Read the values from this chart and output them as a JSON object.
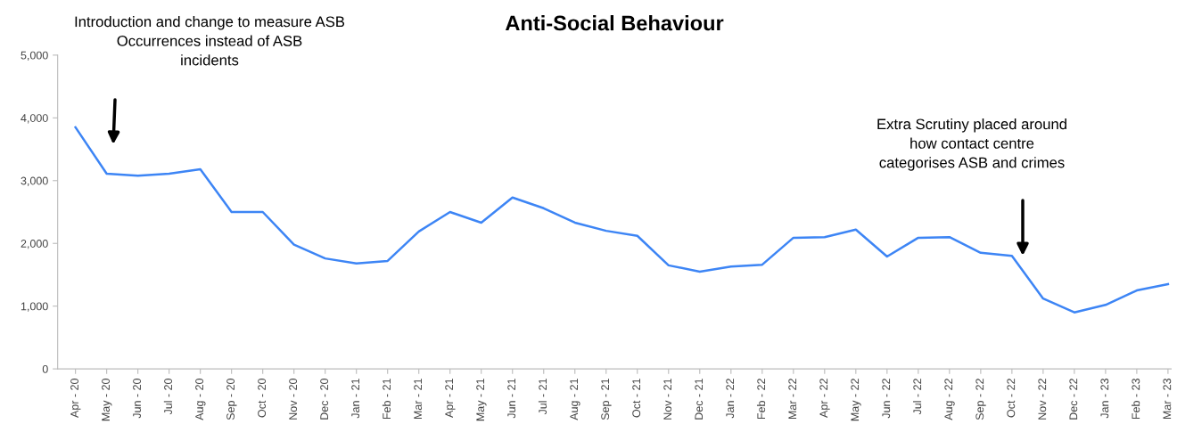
{
  "chart_data": {
    "type": "line",
    "title": "Anti-Social Behaviour",
    "categories": [
      "Apr - 20",
      "May - 20",
      "Jun - 20",
      "Jul - 20",
      "Aug - 20",
      "Sep - 20",
      "Oct - 20",
      "Nov - 20",
      "Dec - 20",
      "Jan - 21",
      "Feb - 21",
      "Mar - 21",
      "Apr - 21",
      "May - 21",
      "Jun - 21",
      "Jul - 21",
      "Aug - 21",
      "Sep - 21",
      "Oct - 21",
      "Nov - 21",
      "Dec - 21",
      "Jan - 22",
      "Feb - 22",
      "Mar - 22",
      "Apr - 22",
      "May - 22",
      "Jun - 22",
      "Jul - 22",
      "Aug - 22",
      "Sep - 22",
      "Oct - 22",
      "Nov - 22",
      "Dec - 22",
      "Jan - 23",
      "Feb - 23",
      "Mar - 23"
    ],
    "series": [
      {
        "color": "#3d85f5",
        "values": [
          3850,
          3110,
          3080,
          3110,
          3180,
          2500,
          2500,
          1980,
          1760,
          1680,
          1720,
          2190,
          2500,
          2330,
          2730,
          2560,
          2330,
          2200,
          2120,
          1650,
          1550,
          1630,
          1660,
          2090,
          2100,
          2220,
          1790,
          2090,
          2100,
          1850,
          1800,
          1120,
          900,
          1020,
          1250,
          1350
        ]
      }
    ],
    "ylim": [
      0,
      5000
    ],
    "yticks": [
      {
        "value": 0,
        "label": "0"
      },
      {
        "value": 1000,
        "label": "1,000"
      },
      {
        "value": 2000,
        "label": "2,000"
      },
      {
        "value": 3000,
        "label": "3,000"
      },
      {
        "value": 4000,
        "label": "4,000"
      },
      {
        "value": 5000,
        "label": "5,000"
      }
    ],
    "grid": false,
    "legend": false,
    "marker": "none",
    "line_style": "solid",
    "annotations": [
      "Introduction and change to measure ASB\nOccurrences instead of ASB\nincidents",
      "Extra Scrutiny placed around\nhow contact centre\ncategorises ASB and crimes"
    ]
  }
}
